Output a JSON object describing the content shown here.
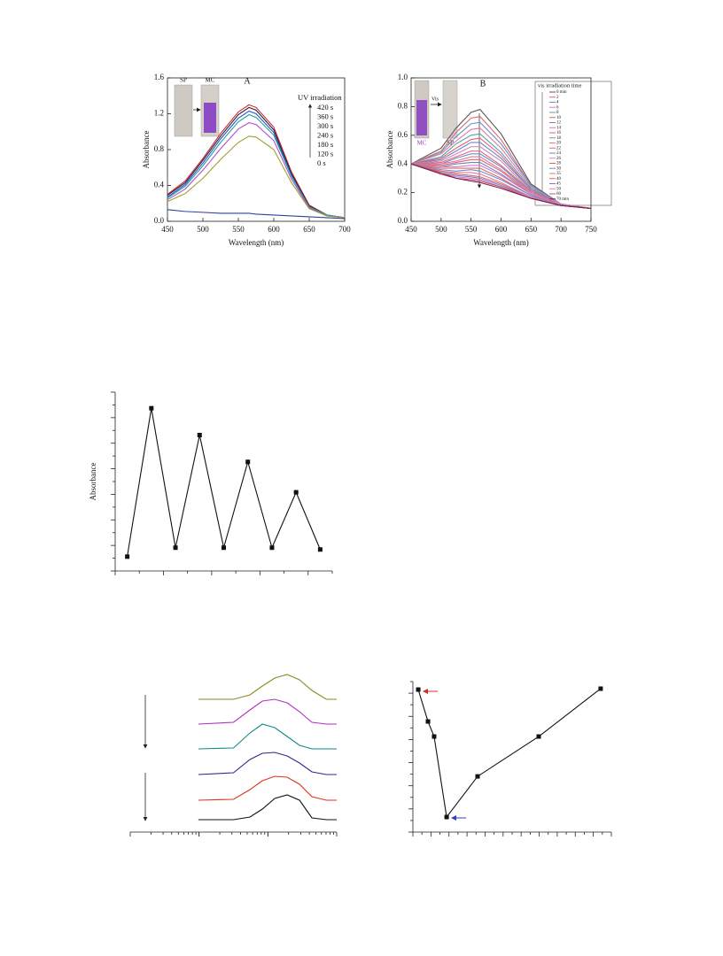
{
  "chart_data": [
    {
      "type": "line",
      "xlabel": "Wavelength (nm)",
      "ylabel": "Absorbance",
      "annotations": [
        "A",
        "SP",
        "MC"
      ],
      "legend_title": "UV irradiation",
      "x": [
        450,
        475,
        500,
        525,
        550,
        565,
        575,
        600,
        625,
        650,
        675,
        700
      ],
      "series": [
        {
          "name": "420 s",
          "color": "#d62728",
          "values": [
            0.3,
            0.45,
            0.7,
            0.98,
            1.22,
            1.3,
            1.27,
            1.05,
            0.55,
            0.18,
            0.07,
            0.04
          ]
        },
        {
          "name": "360 s",
          "color": "#222244",
          "values": [
            0.29,
            0.43,
            0.68,
            0.95,
            1.19,
            1.27,
            1.24,
            1.02,
            0.53,
            0.17,
            0.07,
            0.04
          ]
        },
        {
          "name": "300 s",
          "color": "#3050c0",
          "values": [
            0.27,
            0.41,
            0.65,
            0.92,
            1.15,
            1.23,
            1.2,
            0.99,
            0.51,
            0.16,
            0.07,
            0.04
          ]
        },
        {
          "name": "240 s",
          "color": "#20a0a0",
          "values": [
            0.26,
            0.39,
            0.62,
            0.88,
            1.11,
            1.19,
            1.16,
            0.96,
            0.5,
            0.16,
            0.07,
            0.04
          ]
        },
        {
          "name": "180 s",
          "color": "#b050c8",
          "values": [
            0.24,
            0.36,
            0.57,
            0.81,
            1.03,
            1.1,
            1.08,
            0.9,
            0.47,
            0.15,
            0.06,
            0.04
          ]
        },
        {
          "name": "120 s",
          "color": "#a0a030",
          "values": [
            0.22,
            0.31,
            0.48,
            0.69,
            0.88,
            0.95,
            0.94,
            0.8,
            0.43,
            0.14,
            0.06,
            0.04
          ]
        },
        {
          "name": "0 s",
          "color": "#3040a0",
          "values": [
            0.13,
            0.11,
            0.1,
            0.09,
            0.09,
            0.09,
            0.08,
            0.07,
            0.06,
            0.05,
            0.04,
            0.03
          ]
        }
      ],
      "xlim": [
        450,
        700
      ],
      "xticks": [
        450,
        500,
        550,
        600,
        650,
        700
      ],
      "ylim": [
        0,
        1.6
      ],
      "yticks": [
        {
          "value": 0,
          "label": "0.0"
        },
        0.4,
        0.8,
        1.2,
        1.6
      ]
    },
    {
      "type": "line",
      "xlabel": "Wavelength (nm)",
      "ylabel": "Absorbance",
      "annotations": [
        "B",
        "MC",
        "SP",
        "Vis"
      ],
      "legend_title": "vis irradiation time",
      "x": [
        450,
        500,
        525,
        550,
        565,
        600,
        650,
        700,
        750
      ],
      "series": [
        {
          "name": "0 min",
          "color": "#555555",
          "values": [
            0.4,
            0.51,
            0.65,
            0.76,
            0.78,
            0.61,
            0.26,
            0.12,
            0.09
          ]
        },
        {
          "name": "2",
          "color": "#e06666",
          "values": [
            0.4,
            0.49,
            0.62,
            0.72,
            0.73,
            0.57,
            0.25,
            0.12,
            0.09
          ]
        },
        {
          "name": "4",
          "color": "#6a8fd0",
          "values": [
            0.4,
            0.48,
            0.59,
            0.68,
            0.69,
            0.54,
            0.25,
            0.12,
            0.09
          ]
        },
        {
          "name": "6",
          "color": "#e07a9a",
          "values": [
            0.4,
            0.47,
            0.56,
            0.64,
            0.65,
            0.51,
            0.24,
            0.12,
            0.09
          ]
        },
        {
          "name": "8",
          "color": "#50a0b0",
          "values": [
            0.4,
            0.45,
            0.54,
            0.6,
            0.61,
            0.48,
            0.23,
            0.12,
            0.09
          ]
        },
        {
          "name": "10",
          "color": "#e06666",
          "values": [
            0.4,
            0.44,
            0.51,
            0.57,
            0.58,
            0.46,
            0.22,
            0.12,
            0.09
          ]
        },
        {
          "name": "12",
          "color": "#7080d0",
          "values": [
            0.4,
            0.43,
            0.49,
            0.55,
            0.55,
            0.44,
            0.22,
            0.12,
            0.09
          ]
        },
        {
          "name": "14",
          "color": "#d080c0",
          "values": [
            0.4,
            0.42,
            0.47,
            0.52,
            0.52,
            0.42,
            0.21,
            0.12,
            0.09
          ]
        },
        {
          "name": "16",
          "color": "#e06666",
          "values": [
            0.4,
            0.41,
            0.45,
            0.49,
            0.49,
            0.39,
            0.21,
            0.11,
            0.09
          ]
        },
        {
          "name": "18",
          "color": "#6a8fd0",
          "values": [
            0.4,
            0.4,
            0.44,
            0.47,
            0.47,
            0.38,
            0.2,
            0.11,
            0.09
          ]
        },
        {
          "name": "20",
          "color": "#e07a9a",
          "values": [
            0.4,
            0.4,
            0.42,
            0.45,
            0.45,
            0.36,
            0.2,
            0.11,
            0.09
          ]
        },
        {
          "name": "22",
          "color": "#e06666",
          "values": [
            0.4,
            0.39,
            0.41,
            0.43,
            0.43,
            0.35,
            0.19,
            0.11,
            0.09
          ]
        },
        {
          "name": "24",
          "color": "#7080d0",
          "values": [
            0.4,
            0.38,
            0.4,
            0.41,
            0.41,
            0.33,
            0.19,
            0.11,
            0.09
          ]
        },
        {
          "name": "26",
          "color": "#d080c0",
          "values": [
            0.4,
            0.38,
            0.38,
            0.39,
            0.39,
            0.32,
            0.19,
            0.11,
            0.09
          ]
        },
        {
          "name": "28",
          "color": "#e06666",
          "values": [
            0.4,
            0.37,
            0.37,
            0.37,
            0.37,
            0.3,
            0.18,
            0.11,
            0.09
          ]
        },
        {
          "name": "30",
          "color": "#6a8fd0",
          "values": [
            0.4,
            0.36,
            0.35,
            0.36,
            0.35,
            0.29,
            0.18,
            0.11,
            0.09
          ]
        },
        {
          "name": "35",
          "color": "#e07a9a",
          "values": [
            0.4,
            0.35,
            0.34,
            0.34,
            0.33,
            0.27,
            0.17,
            0.11,
            0.09
          ]
        },
        {
          "name": "40",
          "color": "#e06666",
          "values": [
            0.4,
            0.35,
            0.33,
            0.32,
            0.31,
            0.26,
            0.17,
            0.11,
            0.09
          ]
        },
        {
          "name": "45",
          "color": "#7080d0",
          "values": [
            0.4,
            0.34,
            0.32,
            0.31,
            0.3,
            0.25,
            0.17,
            0.11,
            0.09
          ]
        },
        {
          "name": "50",
          "color": "#d080c0",
          "values": [
            0.4,
            0.34,
            0.31,
            0.3,
            0.29,
            0.24,
            0.17,
            0.11,
            0.09
          ]
        },
        {
          "name": "60",
          "color": "#c05070",
          "values": [
            0.4,
            0.34,
            0.3,
            0.29,
            0.28,
            0.24,
            0.16,
            0.11,
            0.09
          ]
        },
        {
          "name": "70 min",
          "color": "#7a2040",
          "values": [
            0.4,
            0.33,
            0.3,
            0.28,
            0.27,
            0.23,
            0.16,
            0.11,
            0.09
          ]
        }
      ],
      "xlim": [
        450,
        750
      ],
      "xticks": [
        450,
        500,
        550,
        600,
        650,
        700,
        750
      ],
      "ylim": [
        0,
        1.0
      ],
      "yticks": [
        {
          "value": 0,
          "label": "0.0"
        },
        0.2,
        0.4,
        0.6,
        0.8,
        {
          "value": 1,
          "label": "1.0"
        }
      ]
    },
    {
      "type": "line_markers",
      "ylabel": "Absorbance",
      "categories": [
        null,
        null,
        null,
        null,
        null,
        null,
        null,
        null,
        null
      ],
      "values": [
        0.08,
        0.91,
        0.13,
        0.76,
        0.13,
        0.61,
        0.13,
        0.44,
        0.12
      ],
      "color": "#111111",
      "ylim": [
        0,
        1
      ]
    },
    {
      "type": "line",
      "x": [
        33,
        50,
        58,
        64,
        70,
        76,
        82,
        88,
        95,
        100
      ],
      "series": [
        {
          "color": "#8a8a20",
          "values": [
            150,
            150,
            155,
            165,
            174,
            178,
            172,
            160,
            150,
            150
          ]
        },
        {
          "color": "#b030c0",
          "values": [
            122,
            124,
            138,
            148,
            150,
            146,
            136,
            124,
            122,
            122
          ]
        },
        {
          "color": "#108a8a",
          "values": [
            94,
            95,
            112,
            122,
            118,
            108,
            98,
            94,
            94,
            94
          ]
        },
        {
          "color": "#2a2a90",
          "values": [
            65,
            67,
            82,
            89,
            90,
            86,
            78,
            68,
            65,
            65
          ]
        },
        {
          "color": "#e03020",
          "values": [
            36,
            37,
            48,
            58,
            63,
            62,
            54,
            40,
            36,
            36
          ]
        },
        {
          "color": "#111111",
          "values": [
            14,
            14,
            17,
            26,
            38,
            42,
            36,
            16,
            14,
            14
          ]
        }
      ],
      "xlim": [
        0,
        100
      ],
      "ylim": [
        0,
        180
      ]
    },
    {
      "type": "line_markers",
      "x": [
        2.7,
        7.6,
        10.7,
        17,
        32.6,
        63.4,
        94.6
      ],
      "values": [
        94.7,
        73.5,
        63.5,
        10,
        37,
        63.5,
        95.3
      ],
      "color": "#111111",
      "xlim": [
        0,
        100
      ],
      "ylim": [
        0,
        100
      ]
    }
  ]
}
